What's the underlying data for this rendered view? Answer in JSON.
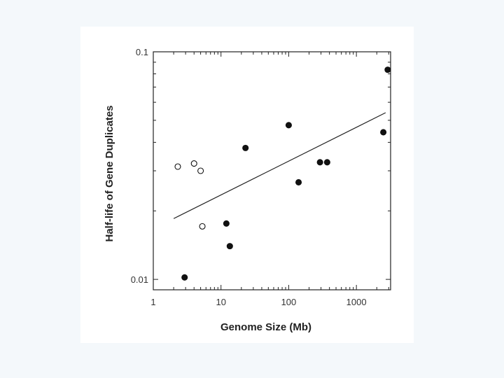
{
  "chart_data": {
    "type": "scatter",
    "title": "",
    "xlabel": "Genome Size (Mb)",
    "ylabel": "Half-life of Gene Duplicates",
    "xscale": "log",
    "yscale": "log",
    "xlim": [
      1,
      3200
    ],
    "ylim": [
      0.009,
      0.1
    ],
    "xticks": [
      1,
      10,
      100,
      1000
    ],
    "xtick_labels": [
      "1",
      "10",
      "100",
      "1000"
    ],
    "yticks": [
      0.01,
      0.1
    ],
    "ytick_labels": [
      "0.01",
      "0.1"
    ],
    "grid": false,
    "legend": "none",
    "series": [
      {
        "marker": "open-circle",
        "x": [
          2.3,
          4.0,
          5.0,
          5.3
        ],
        "y": [
          0.0313,
          0.0323,
          0.03,
          0.0171
        ]
      },
      {
        "marker": "filled-circle",
        "x": [
          2.9,
          12,
          13.5,
          23,
          100,
          140,
          290,
          370,
          2500,
          2900
        ],
        "y": [
          0.0102,
          0.0176,
          0.014,
          0.0378,
          0.0476,
          0.0267,
          0.0327,
          0.0327,
          0.0443,
          0.0834
        ]
      },
      {
        "marker": "line",
        "x": [
          2.0,
          2700
        ],
        "y": [
          0.0185,
          0.054
        ]
      }
    ]
  }
}
